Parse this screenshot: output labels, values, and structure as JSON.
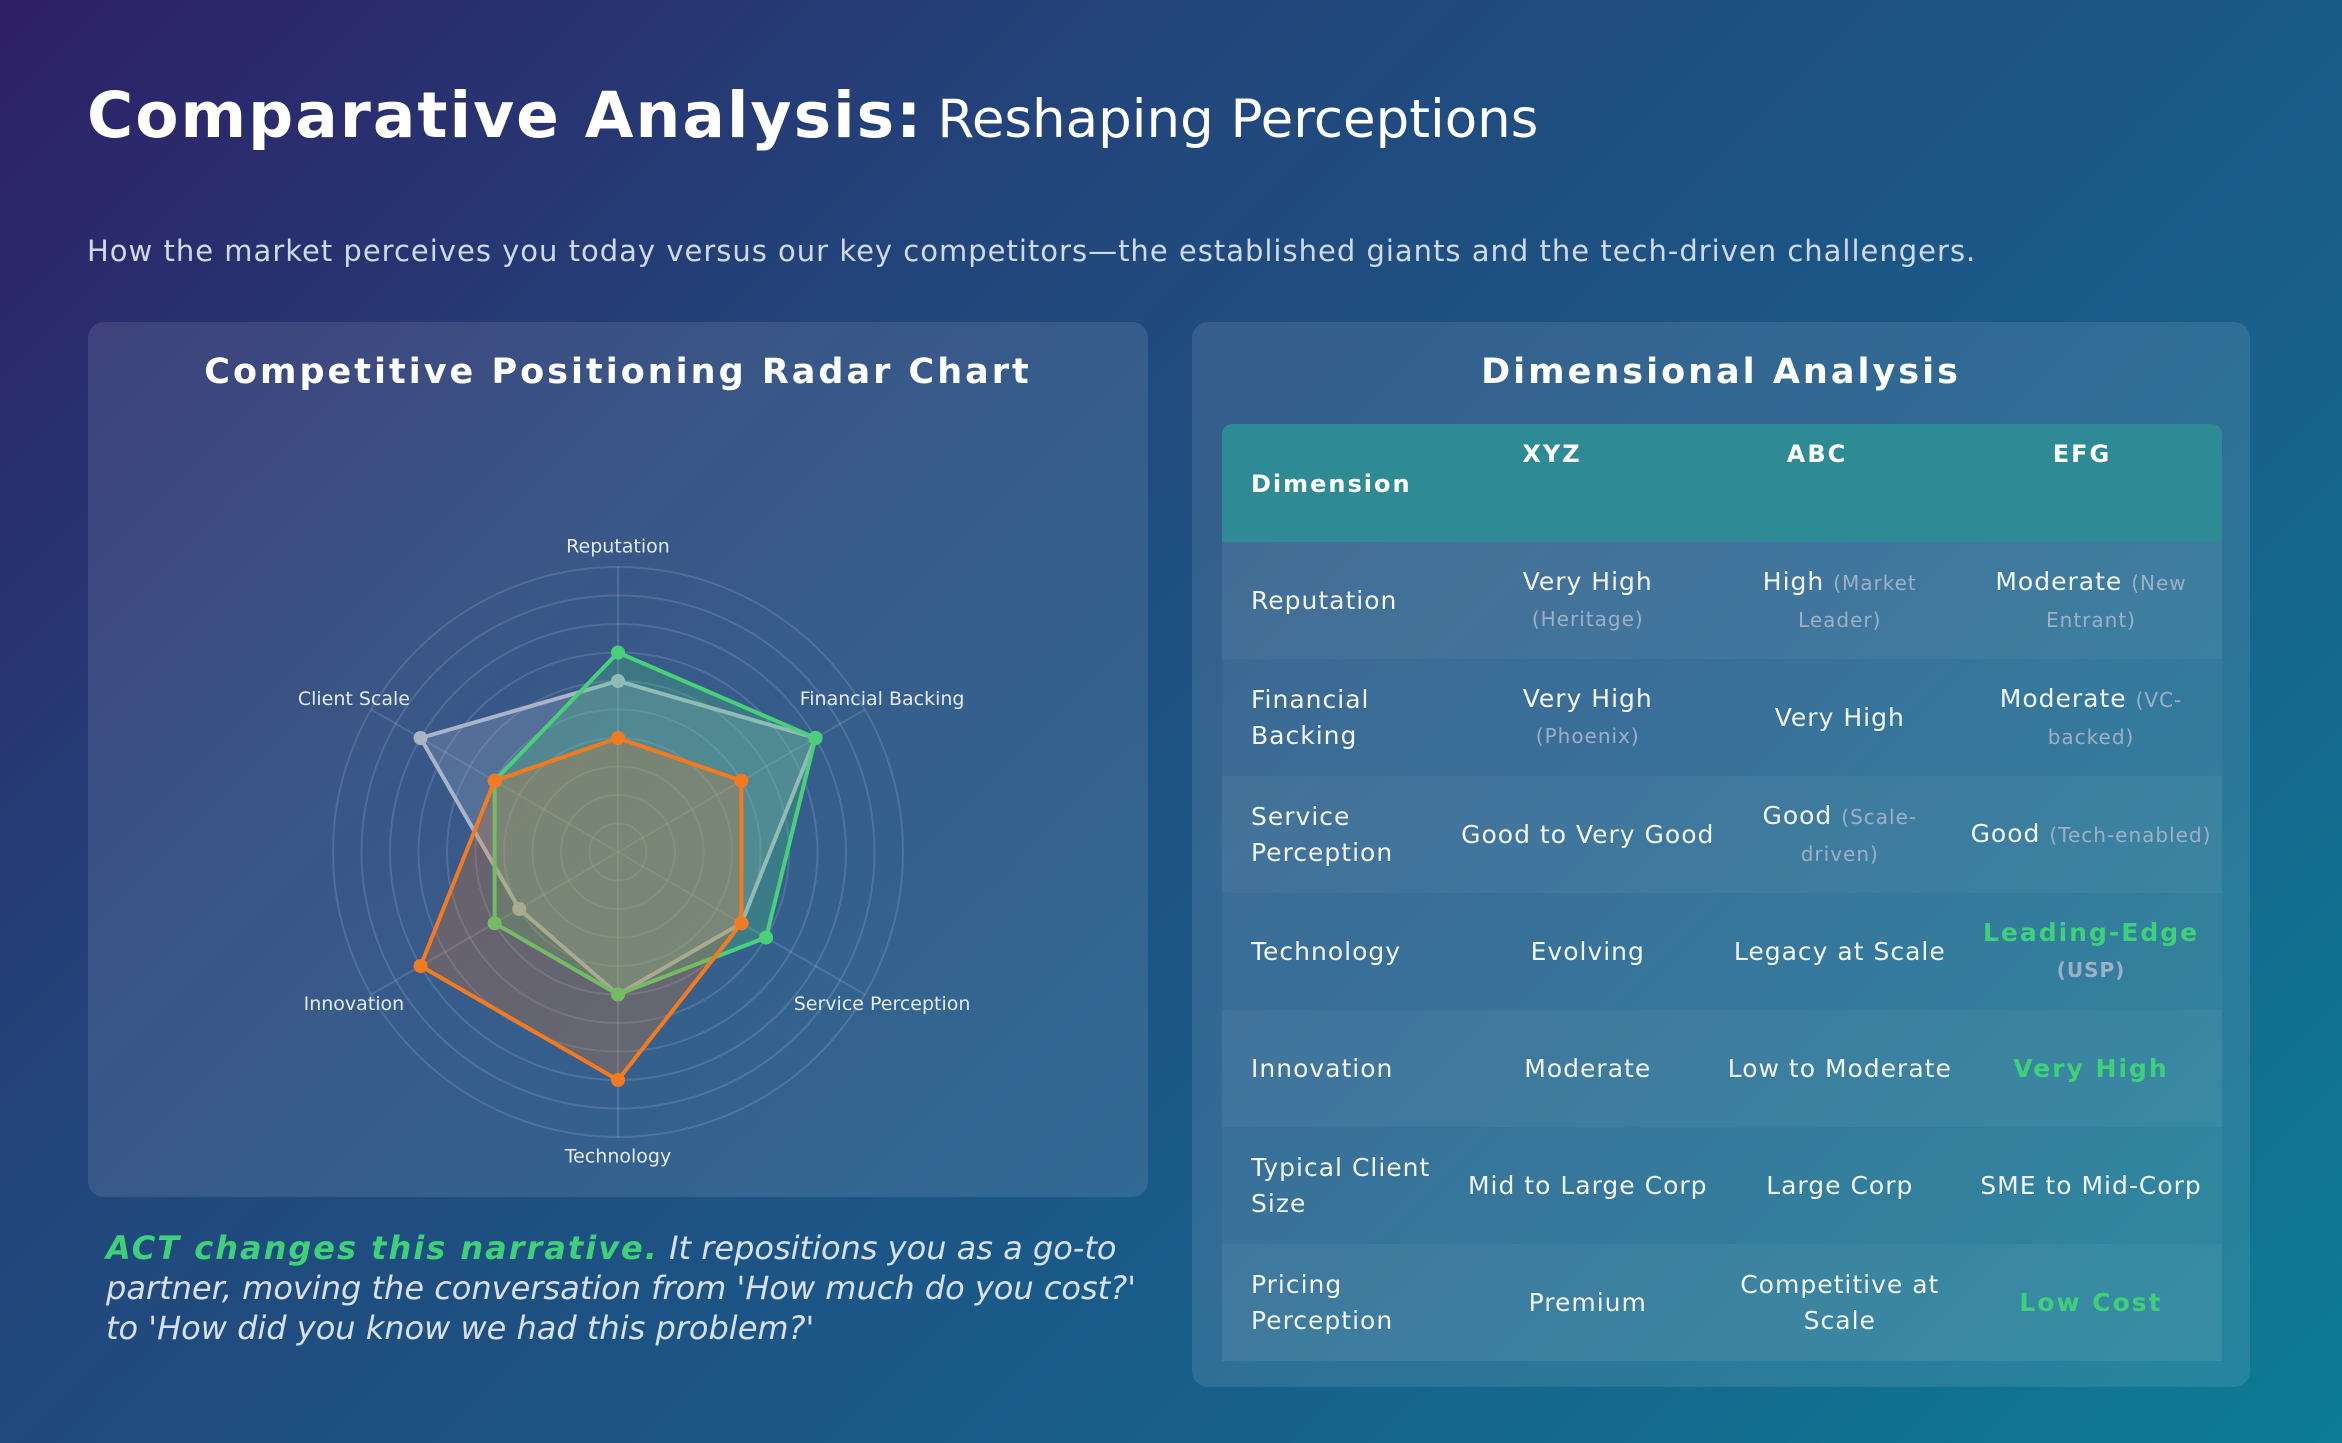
{
  "header": {
    "title_strong": "Comparative Analysis:",
    "title_light": "Reshaping Perceptions",
    "subtitle": "How the market perceives you today versus our key competitors—the established giants and the tech-driven challengers."
  },
  "radar_panel": {
    "title": "Competitive Positioning Radar Chart"
  },
  "chart_data": {
    "type": "radar",
    "title": "Competitive Positioning Radar Chart",
    "axes": [
      "Reputation",
      "Financial Backing",
      "Service Perception",
      "Technology",
      "Innovation",
      "Client Scale"
    ],
    "rlim": [
      0,
      10
    ],
    "grid": true,
    "legend": "none",
    "series": [
      {
        "color": "#a9b4c8",
        "values": [
          6,
          8,
          5,
          5,
          4,
          8
        ]
      },
      {
        "color": "#4ad07a",
        "values": [
          7,
          8,
          6,
          5,
          5,
          5
        ]
      },
      {
        "color": "#f47a20",
        "values": [
          4,
          5,
          5,
          8,
          8,
          5
        ]
      }
    ]
  },
  "quote": {
    "highlight": "ACT changes this narrative.",
    "text": "It repositions you as a go-to partner, moving the conversation from 'How much do you cost?' to 'How did you know we had this problem?'"
  },
  "table_panel": {
    "title": "Dimensional Analysis",
    "headers": {
      "dimension": "Dimension",
      "xyz": "XYZ",
      "abc": "ABC",
      "efg": "EFG"
    },
    "rows": [
      {
        "dimension": "Reputation",
        "xyz": {
          "main": "Very High",
          "note": "(Heritage)"
        },
        "abc": {
          "main": "High",
          "note": "(Market Leader)"
        },
        "efg": {
          "main": "Moderate",
          "note": "(New Entrant)"
        }
      },
      {
        "dimension": "Financial Backing",
        "xyz": {
          "main": "Very High",
          "note": "(Phoenix)"
        },
        "abc": {
          "main": "Very High",
          "note": ""
        },
        "efg": {
          "main": "Moderate",
          "note": "(VC-backed)"
        }
      },
      {
        "dimension": "Service Perception",
        "xyz": {
          "main": "Good to Very Good",
          "note": ""
        },
        "abc": {
          "main": "Good",
          "note": "(Scale-driven)"
        },
        "efg": {
          "main": "Good",
          "note": "(Tech-enabled)"
        }
      },
      {
        "dimension": "Technology",
        "xyz": {
          "main": "Evolving",
          "note": ""
        },
        "abc": {
          "main": "Legacy at Scale",
          "note": ""
        },
        "efg": {
          "main": "Leading-Edge",
          "note": "(USP)"
        }
      },
      {
        "dimension": "Innovation",
        "xyz": {
          "main": "Moderate",
          "note": ""
        },
        "abc": {
          "main": "Low to Moderate",
          "note": ""
        },
        "efg": {
          "main": "Very High",
          "note": ""
        }
      },
      {
        "dimension": "Typical Client Size",
        "xyz": {
          "main": "Mid to Large Corp",
          "note": ""
        },
        "abc": {
          "main": "Large Corp",
          "note": ""
        },
        "efg": {
          "main": "SME to Mid-Corp",
          "note": ""
        }
      },
      {
        "dimension": "Pricing Perception",
        "xyz": {
          "main": "Premium",
          "note": ""
        },
        "abc": {
          "main": "Competitive at Scale",
          "note": ""
        },
        "efg": {
          "main": "Low Cost",
          "note": ""
        }
      }
    ]
  },
  "colors": {
    "highlight": "#3fd07a",
    "table_header": "#2e8a95"
  }
}
